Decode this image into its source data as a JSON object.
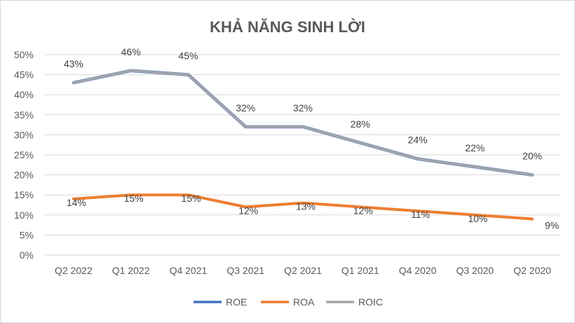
{
  "chart_data": {
    "type": "line",
    "title": "KHẢ NĂNG SINH LỜI",
    "categories": [
      "Q2 2022",
      "Q1 2022",
      "Q4 2021",
      "Q3 2021",
      "Q2 2021",
      "Q1 2021",
      "Q4 2020",
      "Q3 2020",
      "Q2 2020"
    ],
    "ylim": [
      0,
      50
    ],
    "yticks": [
      "0%",
      "5%",
      "10%",
      "15%",
      "20%",
      "25%",
      "30%",
      "35%",
      "40%",
      "45%",
      "50%"
    ],
    "grid": true,
    "legend_position": "bottom",
    "series": [
      {
        "name": "ROE",
        "color": "#4472C4",
        "values": [
          43,
          46,
          45,
          32,
          32,
          28,
          24,
          22,
          20
        ],
        "labels": [
          "43%",
          "46%",
          "45%",
          "32%",
          "32%",
          "28%",
          "24%",
          "22%",
          "20%"
        ],
        "show_labels": false
      },
      {
        "name": "ROA",
        "color": "#ED7D31",
        "values": [
          14,
          15,
          15,
          12,
          13,
          12,
          11,
          10,
          9
        ],
        "labels": [
          "14%",
          "15%",
          "15%",
          "12%",
          "13%",
          "12%",
          "11%",
          "10%",
          "9%"
        ],
        "show_labels": true
      },
      {
        "name": "ROIC",
        "color": "#A5A5A5",
        "values": [
          43,
          46,
          45,
          32,
          32,
          28,
          24,
          22,
          20
        ],
        "labels": [
          "43%",
          "46%",
          "45%",
          "32%",
          "32%",
          "28%",
          "24%",
          "22%",
          "20%"
        ],
        "show_labels": true
      }
    ]
  }
}
